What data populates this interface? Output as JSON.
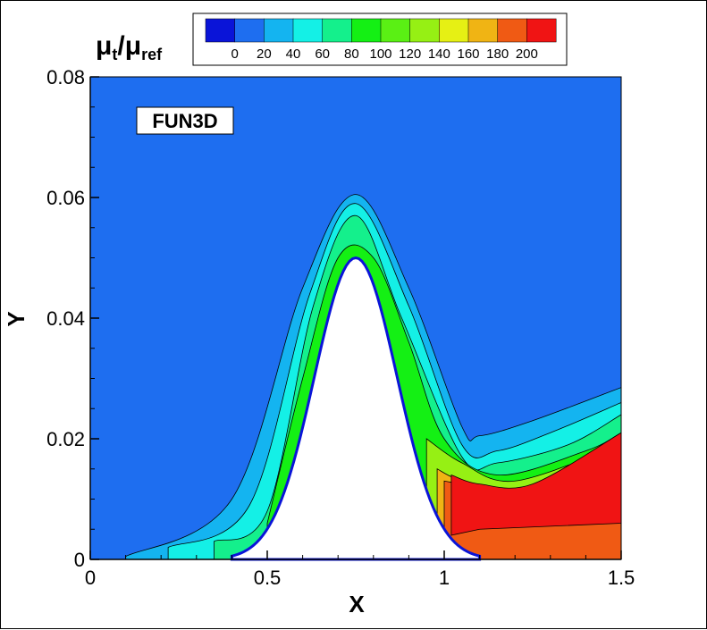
{
  "chart_data": {
    "type": "contour",
    "annotation": "FUN3D",
    "xlabel": "X",
    "ylabel": "Y",
    "xlim": [
      0,
      1.5
    ],
    "ylim": [
      0,
      0.08
    ],
    "xticks": [
      "0",
      "0.5",
      "1",
      "1.5"
    ],
    "xtick_values": [
      0,
      0.5,
      1,
      1.5
    ],
    "yticks": [
      "0",
      "0.02",
      "0.04",
      "0.06",
      "0.08"
    ],
    "ytick_values": [
      0,
      0.02,
      0.04,
      0.06,
      0.08
    ],
    "colorbar": {
      "title_main": "μ",
      "title_sub1": "t",
      "title_sep": "/μ",
      "title_sub2": "ref",
      "ticks": [
        "0",
        "20",
        "40",
        "60",
        "80",
        "100",
        "120",
        "140",
        "160",
        "180",
        "200"
      ],
      "colors": [
        "#0a14d8",
        "#1e6ef0",
        "#14b4f0",
        "#14f0e6",
        "#14f08c",
        "#14f014",
        "#5af014",
        "#96f014",
        "#e6f014",
        "#f0b414",
        "#f05a14",
        "#f01414"
      ]
    },
    "bump": {
      "center_x": 0.75,
      "peak_y": 0.05,
      "half_width_at_base": 0.35
    },
    "levels": [
      {
        "value": 20,
        "color": "#14b4f0",
        "left_extent": 0.1,
        "upper": [
          [
            0.1,
            0.0005
          ],
          [
            0.4,
            0.01
          ],
          [
            0.6,
            0.045
          ],
          [
            0.75,
            0.0605
          ],
          [
            0.9,
            0.045
          ],
          [
            1.05,
            0.022
          ],
          [
            1.1,
            0.0205
          ],
          [
            1.25,
            0.023
          ],
          [
            1.5,
            0.0285
          ]
        ]
      },
      {
        "value": 40,
        "color": "#14f0e6",
        "left_extent": 0.22,
        "upper": [
          [
            0.22,
            0.002
          ],
          [
            0.45,
            0.009
          ],
          [
            0.62,
            0.044
          ],
          [
            0.75,
            0.059
          ],
          [
            0.9,
            0.042
          ],
          [
            1.05,
            0.019
          ],
          [
            1.15,
            0.018
          ],
          [
            1.3,
            0.021
          ],
          [
            1.5,
            0.026
          ]
        ]
      },
      {
        "value": 60,
        "color": "#14f08c",
        "left_extent": 0.35,
        "upper": [
          [
            0.35,
            0.003
          ],
          [
            0.5,
            0.008
          ],
          [
            0.63,
            0.042
          ],
          [
            0.75,
            0.057
          ],
          [
            0.88,
            0.04
          ],
          [
            1.05,
            0.017
          ],
          [
            1.15,
            0.016
          ],
          [
            1.35,
            0.019
          ],
          [
            1.5,
            0.024
          ]
        ]
      },
      {
        "value": 80,
        "color": "#14f014",
        "left_extent": 0.5,
        "upper": [
          [
            0.5,
            0.006
          ],
          [
            0.6,
            0.03
          ],
          [
            0.7,
            0.05
          ],
          [
            0.8,
            0.05
          ],
          [
            0.9,
            0.036
          ],
          [
            1.0,
            0.02
          ],
          [
            1.15,
            0.014
          ],
          [
            1.4,
            0.018
          ],
          [
            1.5,
            0.021
          ]
        ]
      },
      {
        "value": 120,
        "color": "#96f014",
        "left_extent": 0.95,
        "upper": [
          [
            0.95,
            0.02
          ],
          [
            1.05,
            0.016
          ],
          [
            1.2,
            0.013
          ],
          [
            1.5,
            0.019
          ]
        ]
      },
      {
        "value": 160,
        "color": "#f0b414",
        "left_extent": 0.98,
        "upper": [
          [
            0.98,
            0.015
          ],
          [
            1.05,
            0.013
          ],
          [
            1.2,
            0.011
          ],
          [
            1.5,
            0.0165
          ]
        ]
      },
      {
        "value": 180,
        "color": "#f05a14",
        "left_extent": 1.0,
        "upper": [
          [
            1.0,
            0.013
          ],
          [
            1.1,
            0.012
          ],
          [
            1.25,
            0.011
          ],
          [
            1.5,
            0.016
          ]
        ]
      },
      {
        "value": 200,
        "color": "#f01414",
        "left_extent": 1.02,
        "upper": [
          [
            1.02,
            0.014
          ],
          [
            1.1,
            0.0125
          ],
          [
            1.25,
            0.0125
          ],
          [
            1.5,
            0.021
          ]
        ],
        "lower": [
          [
            1.02,
            0.004
          ],
          [
            1.1,
            0.005
          ],
          [
            1.5,
            0.006
          ]
        ]
      }
    ]
  }
}
